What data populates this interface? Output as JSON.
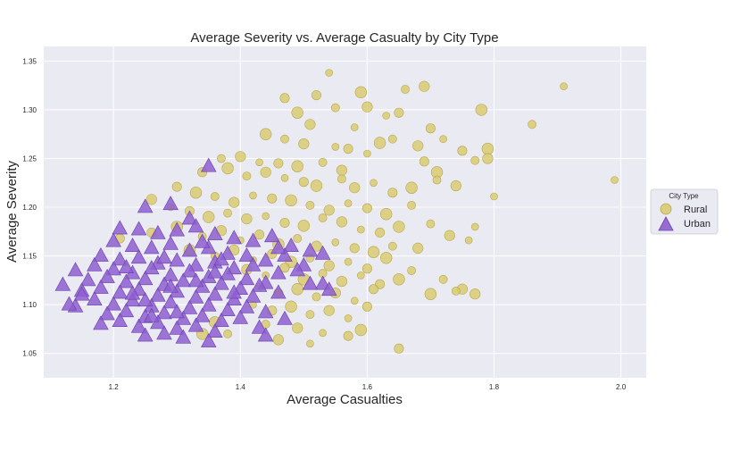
{
  "chart_data": {
    "type": "scatter",
    "title": "Average Severity vs. Average Casualty by City Type",
    "xlabel": "Average Casualties",
    "ylabel": "Average Severity",
    "xlim": [
      1.09,
      2.04
    ],
    "ylim": [
      1.025,
      1.365
    ],
    "xticks": [
      1.2,
      1.4,
      1.6,
      1.8,
      2.0
    ],
    "xtick_labels": [
      "1.2",
      "1.4",
      "1.6",
      "1.8",
      "2.0"
    ],
    "yticks": [
      1.05,
      1.1,
      1.15,
      1.2,
      1.25,
      1.3,
      1.35
    ],
    "ytick_labels": [
      "1.05",
      "1.10",
      "1.15",
      "1.20",
      "1.25",
      "1.30",
      "1.35"
    ],
    "grid": true,
    "background_color": "#eaeaf2",
    "legend": {
      "title": "City Type",
      "placement": "center-right"
    },
    "series": [
      {
        "name": "Rural",
        "marker": "circle",
        "color": "#d8c96a",
        "edge_color": "#b8a84a",
        "points": [
          [
            1.54,
            1.338
          ],
          [
            1.52,
            1.315
          ],
          [
            1.59,
            1.318
          ],
          [
            1.66,
            1.321
          ],
          [
            1.69,
            1.324
          ],
          [
            1.91,
            1.324
          ],
          [
            1.47,
            1.312
          ],
          [
            1.49,
            1.297
          ],
          [
            1.55,
            1.302
          ],
          [
            1.6,
            1.303
          ],
          [
            1.63,
            1.294
          ],
          [
            1.65,
            1.297
          ],
          [
            1.78,
            1.3
          ],
          [
            1.86,
            1.285
          ],
          [
            1.51,
            1.285
          ],
          [
            1.58,
            1.282
          ],
          [
            1.7,
            1.281
          ],
          [
            1.44,
            1.275
          ],
          [
            1.47,
            1.27
          ],
          [
            1.5,
            1.265
          ],
          [
            1.55,
            1.262
          ],
          [
            1.57,
            1.26
          ],
          [
            1.62,
            1.266
          ],
          [
            1.64,
            1.27
          ],
          [
            1.68,
            1.263
          ],
          [
            1.72,
            1.27
          ],
          [
            1.75,
            1.258
          ],
          [
            1.79,
            1.26
          ],
          [
            1.37,
            1.25
          ],
          [
            1.4,
            1.252
          ],
          [
            1.43,
            1.246
          ],
          [
            1.46,
            1.245
          ],
          [
            1.49,
            1.242
          ],
          [
            1.53,
            1.246
          ],
          [
            1.56,
            1.238
          ],
          [
            1.6,
            1.255
          ],
          [
            1.69,
            1.247
          ],
          [
            1.71,
            1.236
          ],
          [
            1.77,
            1.248
          ],
          [
            1.79,
            1.25
          ],
          [
            1.99,
            1.228
          ],
          [
            1.34,
            1.236
          ],
          [
            1.38,
            1.24
          ],
          [
            1.41,
            1.232
          ],
          [
            1.44,
            1.236
          ],
          [
            1.47,
            1.23
          ],
          [
            1.5,
            1.226
          ],
          [
            1.52,
            1.222
          ],
          [
            1.56,
            1.229
          ],
          [
            1.58,
            1.22
          ],
          [
            1.61,
            1.225
          ],
          [
            1.64,
            1.215
          ],
          [
            1.67,
            1.22
          ],
          [
            1.71,
            1.228
          ],
          [
            1.74,
            1.222
          ],
          [
            1.8,
            1.211
          ],
          [
            1.3,
            1.221
          ],
          [
            1.33,
            1.215
          ],
          [
            1.36,
            1.211
          ],
          [
            1.39,
            1.205
          ],
          [
            1.42,
            1.212
          ],
          [
            1.45,
            1.209
          ],
          [
            1.48,
            1.207
          ],
          [
            1.51,
            1.202
          ],
          [
            1.54,
            1.197
          ],
          [
            1.57,
            1.204
          ],
          [
            1.6,
            1.199
          ],
          [
            1.63,
            1.193
          ],
          [
            1.67,
            1.202
          ],
          [
            1.26,
            1.208
          ],
          [
            1.29,
            1.2
          ],
          [
            1.32,
            1.196
          ],
          [
            1.35,
            1.19
          ],
          [
            1.38,
            1.194
          ],
          [
            1.41,
            1.188
          ],
          [
            1.44,
            1.191
          ],
          [
            1.47,
            1.184
          ],
          [
            1.5,
            1.181
          ],
          [
            1.53,
            1.189
          ],
          [
            1.56,
            1.185
          ],
          [
            1.59,
            1.177
          ],
          [
            1.62,
            1.174
          ],
          [
            1.65,
            1.18
          ],
          [
            1.7,
            1.183
          ],
          [
            1.73,
            1.171
          ],
          [
            1.77,
            1.18
          ],
          [
            1.26,
            1.174
          ],
          [
            1.3,
            1.18
          ],
          [
            1.34,
            1.17
          ],
          [
            1.37,
            1.176
          ],
          [
            1.4,
            1.166
          ],
          [
            1.43,
            1.172
          ],
          [
            1.46,
            1.162
          ],
          [
            1.49,
            1.168
          ],
          [
            1.52,
            1.16
          ],
          [
            1.55,
            1.164
          ],
          [
            1.58,
            1.158
          ],
          [
            1.61,
            1.154
          ],
          [
            1.64,
            1.16
          ],
          [
            1.68,
            1.158
          ],
          [
            1.76,
            1.166
          ],
          [
            1.21,
            1.168
          ],
          [
            1.32,
            1.156
          ],
          [
            1.36,
            1.15
          ],
          [
            1.39,
            1.156
          ],
          [
            1.42,
            1.146
          ],
          [
            1.45,
            1.152
          ],
          [
            1.48,
            1.144
          ],
          [
            1.51,
            1.148
          ],
          [
            1.54,
            1.14
          ],
          [
            1.57,
            1.144
          ],
          [
            1.6,
            1.137
          ],
          [
            1.63,
            1.148
          ],
          [
            1.67,
            1.135
          ],
          [
            1.41,
            1.136
          ],
          [
            1.44,
            1.13
          ],
          [
            1.47,
            1.138
          ],
          [
            1.5,
            1.126
          ],
          [
            1.53,
            1.132
          ],
          [
            1.56,
            1.124
          ],
          [
            1.59,
            1.13
          ],
          [
            1.62,
            1.121
          ],
          [
            1.65,
            1.126
          ],
          [
            1.72,
            1.126
          ],
          [
            1.75,
            1.116
          ],
          [
            1.43,
            1.118
          ],
          [
            1.46,
            1.112
          ],
          [
            1.49,
            1.116
          ],
          [
            1.52,
            1.108
          ],
          [
            1.55,
            1.112
          ],
          [
            1.58,
            1.104
          ],
          [
            1.61,
            1.116
          ],
          [
            1.7,
            1.111
          ],
          [
            1.74,
            1.114
          ],
          [
            1.77,
            1.111
          ],
          [
            1.42,
            1.1
          ],
          [
            1.45,
            1.094
          ],
          [
            1.48,
            1.098
          ],
          [
            1.51,
            1.09
          ],
          [
            1.54,
            1.094
          ],
          [
            1.57,
            1.086
          ],
          [
            1.6,
            1.098
          ],
          [
            1.36,
            1.082
          ],
          [
            1.44,
            1.08
          ],
          [
            1.49,
            1.076
          ],
          [
            1.53,
            1.071
          ],
          [
            1.57,
            1.068
          ],
          [
            1.59,
            1.074
          ],
          [
            1.38,
            1.07
          ],
          [
            1.46,
            1.064
          ],
          [
            1.51,
            1.06
          ],
          [
            1.65,
            1.055
          ],
          [
            1.34,
            1.07
          ]
        ]
      },
      {
        "name": "Urban",
        "marker": "triangle",
        "color": "#8e5fd0",
        "edge_color": "#6a3fb0",
        "points": [
          [
            1.35,
            1.242
          ],
          [
            1.25,
            1.2
          ],
          [
            1.29,
            1.203
          ],
          [
            1.32,
            1.188
          ],
          [
            1.21,
            1.178
          ],
          [
            1.24,
            1.177
          ],
          [
            1.27,
            1.173
          ],
          [
            1.3,
            1.176
          ],
          [
            1.33,
            1.18
          ],
          [
            1.36,
            1.172
          ],
          [
            1.39,
            1.168
          ],
          [
            1.42,
            1.165
          ],
          [
            1.45,
            1.17
          ],
          [
            1.48,
            1.16
          ],
          [
            1.51,
            1.155
          ],
          [
            1.2,
            1.165
          ],
          [
            1.23,
            1.16
          ],
          [
            1.26,
            1.158
          ],
          [
            1.29,
            1.162
          ],
          [
            1.32,
            1.155
          ],
          [
            1.35,
            1.158
          ],
          [
            1.38,
            1.152
          ],
          [
            1.41,
            1.15
          ],
          [
            1.44,
            1.145
          ],
          [
            1.47,
            1.15
          ],
          [
            1.5,
            1.14
          ],
          [
            1.53,
            1.152
          ],
          [
            1.18,
            1.15
          ],
          [
            1.21,
            1.146
          ],
          [
            1.24,
            1.148
          ],
          [
            1.27,
            1.142
          ],
          [
            1.3,
            1.145
          ],
          [
            1.33,
            1.14
          ],
          [
            1.36,
            1.143
          ],
          [
            1.39,
            1.137
          ],
          [
            1.42,
            1.14
          ],
          [
            1.46,
            1.132
          ],
          [
            1.49,
            1.135
          ],
          [
            1.14,
            1.135
          ],
          [
            1.17,
            1.14
          ],
          [
            1.2,
            1.136
          ],
          [
            1.23,
            1.132
          ],
          [
            1.26,
            1.137
          ],
          [
            1.29,
            1.13
          ],
          [
            1.32,
            1.134
          ],
          [
            1.35,
            1.128
          ],
          [
            1.38,
            1.131
          ],
          [
            1.41,
            1.126
          ],
          [
            1.44,
            1.122
          ],
          [
            1.53,
            1.121
          ],
          [
            1.16,
            1.125
          ],
          [
            1.19,
            1.128
          ],
          [
            1.22,
            1.123
          ],
          [
            1.25,
            1.126
          ],
          [
            1.28,
            1.12
          ],
          [
            1.31,
            1.124
          ],
          [
            1.34,
            1.118
          ],
          [
            1.37,
            1.121
          ],
          [
            1.4,
            1.116
          ],
          [
            1.43,
            1.119
          ],
          [
            1.51,
            1.121
          ],
          [
            1.54,
            1.115
          ],
          [
            1.12,
            1.12
          ],
          [
            1.15,
            1.114
          ],
          [
            1.18,
            1.117
          ],
          [
            1.21,
            1.112
          ],
          [
            1.24,
            1.115
          ],
          [
            1.27,
            1.109
          ],
          [
            1.3,
            1.113
          ],
          [
            1.33,
            1.107
          ],
          [
            1.36,
            1.11
          ],
          [
            1.39,
            1.105
          ],
          [
            1.42,
            1.108
          ],
          [
            1.46,
            1.112
          ],
          [
            1.17,
            1.105
          ],
          [
            1.2,
            1.1
          ],
          [
            1.23,
            1.104
          ],
          [
            1.26,
            1.098
          ],
          [
            1.29,
            1.102
          ],
          [
            1.32,
            1.096
          ],
          [
            1.35,
            1.099
          ],
          [
            1.38,
            1.094
          ],
          [
            1.41,
            1.097
          ],
          [
            1.44,
            1.092
          ],
          [
            1.14,
            1.098
          ],
          [
            1.19,
            1.09
          ],
          [
            1.22,
            1.093
          ],
          [
            1.25,
            1.087
          ],
          [
            1.28,
            1.091
          ],
          [
            1.31,
            1.085
          ],
          [
            1.34,
            1.088
          ],
          [
            1.37,
            1.083
          ],
          [
            1.4,
            1.086
          ],
          [
            1.47,
            1.085
          ],
          [
            1.18,
            1.08
          ],
          [
            1.21,
            1.083
          ],
          [
            1.24,
            1.077
          ],
          [
            1.27,
            1.081
          ],
          [
            1.3,
            1.075
          ],
          [
            1.33,
            1.078
          ],
          [
            1.36,
            1.072
          ],
          [
            1.43,
            1.076
          ],
          [
            1.25,
            1.068
          ],
          [
            1.28,
            1.07
          ],
          [
            1.31,
            1.066
          ],
          [
            1.35,
            1.062
          ],
          [
            1.44,
            1.068
          ],
          [
            1.15,
            1.11
          ],
          [
            1.13,
            1.1
          ],
          [
            1.22,
            1.138
          ],
          [
            1.28,
            1.148
          ],
          [
            1.34,
            1.164
          ],
          [
            1.37,
            1.146
          ],
          [
            1.46,
            1.158
          ],
          [
            1.26,
            1.088
          ],
          [
            1.29,
            1.118
          ],
          [
            1.33,
            1.124
          ],
          [
            1.39,
            1.112
          ],
          [
            1.23,
            1.111
          ],
          [
            1.3,
            1.092
          ],
          [
            1.36,
            1.133
          ],
          [
            1.25,
            1.104
          ]
        ]
      }
    ]
  }
}
